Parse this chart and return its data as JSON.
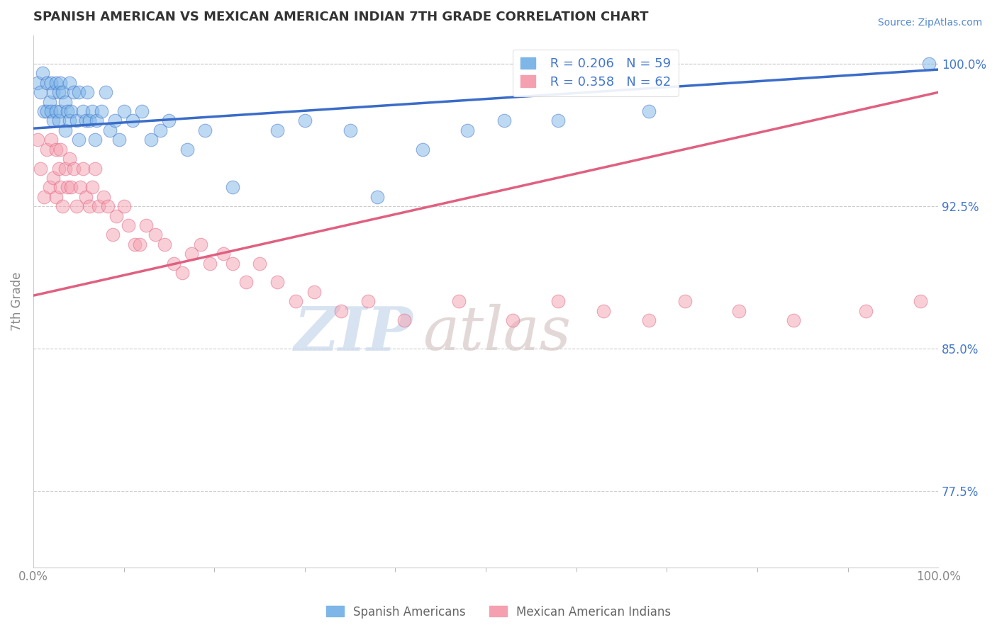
{
  "title": "SPANISH AMERICAN VS MEXICAN AMERICAN INDIAN 7TH GRADE CORRELATION CHART",
  "source": "Source: ZipAtlas.com",
  "xlabel": "",
  "ylabel": "7th Grade",
  "xlim": [
    0,
    1.0
  ],
  "ylim": [
    0.735,
    1.015
  ],
  "xtick_labels": [
    "0.0%",
    "100.0%"
  ],
  "ytick_right_labels": [
    "77.5%",
    "85.0%",
    "92.5%",
    "100.0%"
  ],
  "ytick_right_values": [
    0.775,
    0.85,
    0.925,
    1.0
  ],
  "blue_label": "Spanish Americans",
  "pink_label": "Mexican American Indians",
  "blue_R": 0.206,
  "blue_N": 59,
  "pink_R": 0.358,
  "pink_N": 62,
  "blue_color": "#7EB6E8",
  "pink_color": "#F5A0B0",
  "blue_line_color": "#3A6CC8",
  "pink_line_color": "#E06080",
  "background_color": "#FFFFFF",
  "watermark_zip": "ZIP",
  "watermark_atlas": "atlas",
  "watermark_color_zip": "#C8D8EC",
  "watermark_color_atlas": "#D8C8C8",
  "grid_color": "#CCCCCC",
  "title_color": "#333333",
  "source_color": "#5588CC",
  "axis_label_color": "#888888",
  "tick_label_color": "#888888",
  "right_tick_color": "#4477CC",
  "blue_trend_x": [
    0.0,
    1.0
  ],
  "blue_trend_y": [
    0.966,
    0.997
  ],
  "pink_trend_x": [
    0.0,
    1.0
  ],
  "pink_trend_y": [
    0.878,
    0.985
  ],
  "blue_x": [
    0.005,
    0.008,
    0.01,
    0.012,
    0.015,
    0.015,
    0.018,
    0.02,
    0.02,
    0.022,
    0.022,
    0.025,
    0.025,
    0.028,
    0.028,
    0.03,
    0.03,
    0.032,
    0.035,
    0.035,
    0.038,
    0.04,
    0.04,
    0.042,
    0.045,
    0.048,
    0.05,
    0.05,
    0.055,
    0.058,
    0.06,
    0.062,
    0.065,
    0.068,
    0.07,
    0.075,
    0.08,
    0.085,
    0.09,
    0.095,
    0.1,
    0.11,
    0.12,
    0.13,
    0.14,
    0.15,
    0.17,
    0.19,
    0.22,
    0.27,
    0.3,
    0.35,
    0.38,
    0.43,
    0.48,
    0.52,
    0.58,
    0.68,
    0.99
  ],
  "blue_y": [
    0.99,
    0.985,
    0.995,
    0.975,
    0.99,
    0.975,
    0.98,
    0.99,
    0.975,
    0.985,
    0.97,
    0.99,
    0.975,
    0.985,
    0.97,
    0.99,
    0.975,
    0.985,
    0.98,
    0.965,
    0.975,
    0.99,
    0.97,
    0.975,
    0.985,
    0.97,
    0.985,
    0.96,
    0.975,
    0.97,
    0.985,
    0.97,
    0.975,
    0.96,
    0.97,
    0.975,
    0.985,
    0.965,
    0.97,
    0.96,
    0.975,
    0.97,
    0.975,
    0.96,
    0.965,
    0.97,
    0.955,
    0.965,
    0.935,
    0.965,
    0.97,
    0.965,
    0.93,
    0.955,
    0.965,
    0.97,
    0.97,
    0.975,
    1.0
  ],
  "pink_x": [
    0.005,
    0.008,
    0.012,
    0.015,
    0.018,
    0.02,
    0.022,
    0.025,
    0.025,
    0.028,
    0.03,
    0.03,
    0.032,
    0.035,
    0.038,
    0.04,
    0.042,
    0.045,
    0.048,
    0.052,
    0.055,
    0.058,
    0.062,
    0.065,
    0.068,
    0.072,
    0.078,
    0.082,
    0.088,
    0.092,
    0.1,
    0.105,
    0.112,
    0.118,
    0.125,
    0.135,
    0.145,
    0.155,
    0.165,
    0.175,
    0.185,
    0.195,
    0.21,
    0.22,
    0.235,
    0.25,
    0.27,
    0.29,
    0.31,
    0.34,
    0.37,
    0.41,
    0.47,
    0.53,
    0.58,
    0.63,
    0.68,
    0.72,
    0.78,
    0.84,
    0.92,
    0.98
  ],
  "pink_y": [
    0.96,
    0.945,
    0.93,
    0.955,
    0.935,
    0.96,
    0.94,
    0.955,
    0.93,
    0.945,
    0.955,
    0.935,
    0.925,
    0.945,
    0.935,
    0.95,
    0.935,
    0.945,
    0.925,
    0.935,
    0.945,
    0.93,
    0.925,
    0.935,
    0.945,
    0.925,
    0.93,
    0.925,
    0.91,
    0.92,
    0.925,
    0.915,
    0.905,
    0.905,
    0.915,
    0.91,
    0.905,
    0.895,
    0.89,
    0.9,
    0.905,
    0.895,
    0.9,
    0.895,
    0.885,
    0.895,
    0.885,
    0.875,
    0.88,
    0.87,
    0.875,
    0.865,
    0.875,
    0.865,
    0.875,
    0.87,
    0.865,
    0.875,
    0.87,
    0.865,
    0.87,
    0.875
  ]
}
